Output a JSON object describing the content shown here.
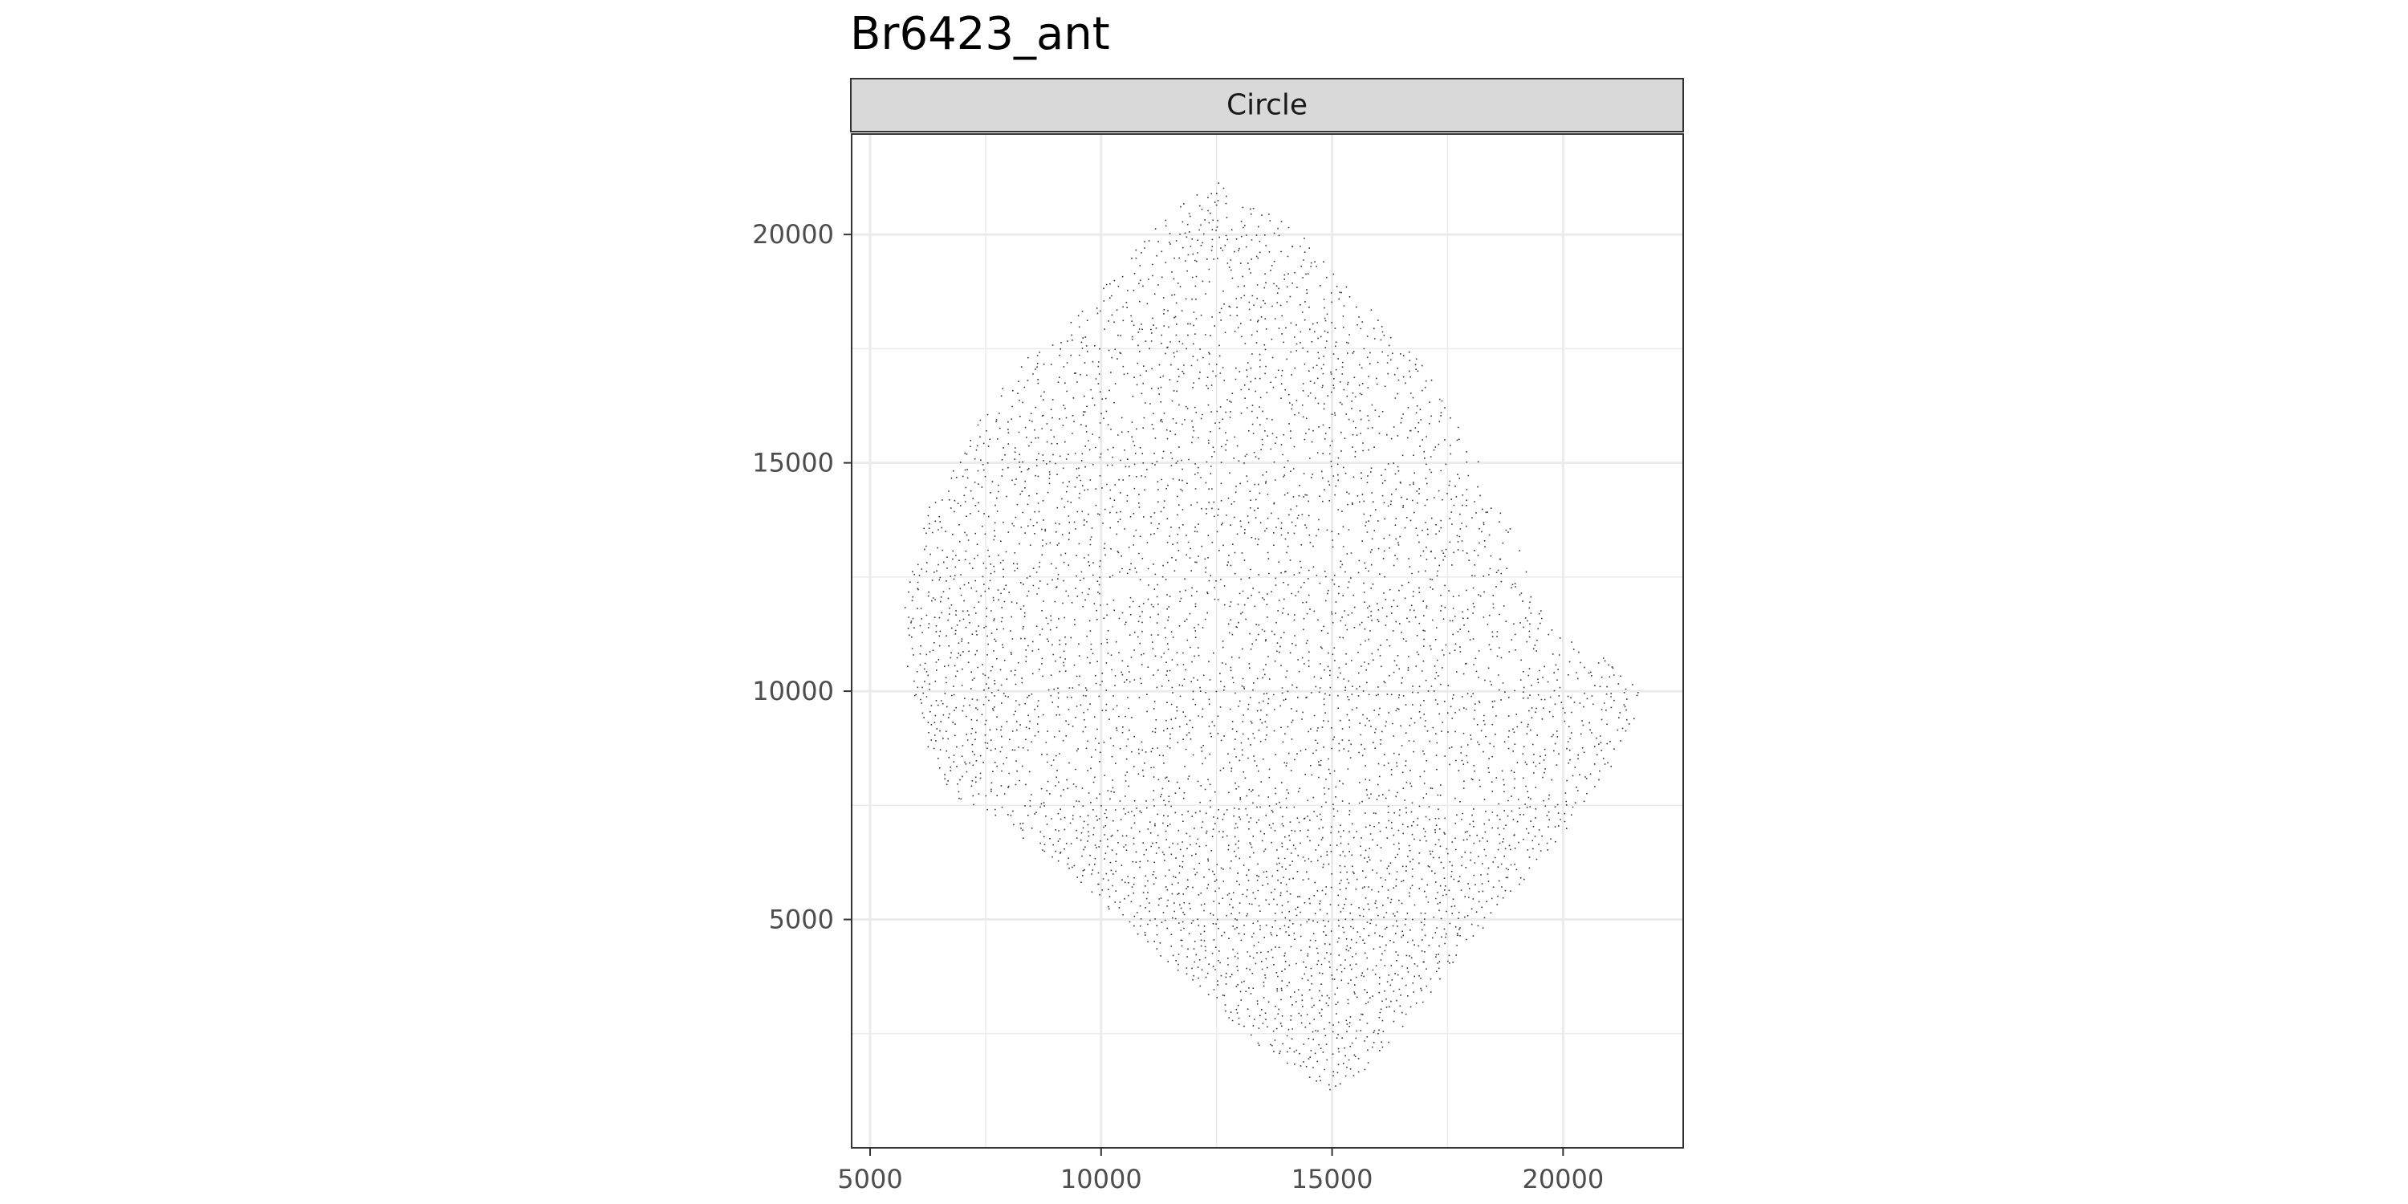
{
  "chart_data": {
    "type": "scatter",
    "title": "Br6423_ant",
    "facet": "Circle",
    "xlabel": "",
    "ylabel": "",
    "xlim": [
      4600,
      22600
    ],
    "ylim": [
      0,
      22200
    ],
    "xticks": [
      5000,
      10000,
      15000,
      20000
    ],
    "yticks": [
      5000,
      10000,
      15000,
      20000
    ],
    "xtick_labels": [
      "5000",
      "10000",
      "15000",
      "20000"
    ],
    "ytick_labels": [
      "5000",
      "10000",
      "15000",
      "20000"
    ],
    "grid": true,
    "legend": "none",
    "point_color": "#333333",
    "panel_border_color": "#333333",
    "grid_major_color": "#ebebeb",
    "tissue_outline": [
      [
        12500,
        21200
      ],
      [
        13900,
        20600
      ],
      [
        14900,
        19300
      ],
      [
        15900,
        18300
      ],
      [
        16900,
        17200
      ],
      [
        17800,
        15800
      ],
      [
        18700,
        14000
      ],
      [
        19200,
        12700
      ],
      [
        19800,
        11300
      ],
      [
        21100,
        10700
      ],
      [
        21800,
        9900
      ],
      [
        21300,
        8700
      ],
      [
        20300,
        7300
      ],
      [
        19100,
        5800
      ],
      [
        17900,
        4400
      ],
      [
        16800,
        3000
      ],
      [
        15800,
        1800
      ],
      [
        15000,
        1250
      ],
      [
        14300,
        1500
      ],
      [
        13000,
        2600
      ],
      [
        11500,
        4000
      ],
      [
        10300,
        5100
      ],
      [
        9000,
        6300
      ],
      [
        7700,
        7200
      ],
      [
        6800,
        7700
      ],
      [
        6300,
        8500
      ],
      [
        5800,
        10500
      ],
      [
        5700,
        12400
      ],
      [
        6300,
        14200
      ],
      [
        7400,
        16000
      ],
      [
        8400,
        17400
      ],
      [
        9800,
        18600
      ],
      [
        10900,
        19900
      ],
      [
        11800,
        20800
      ]
    ]
  }
}
